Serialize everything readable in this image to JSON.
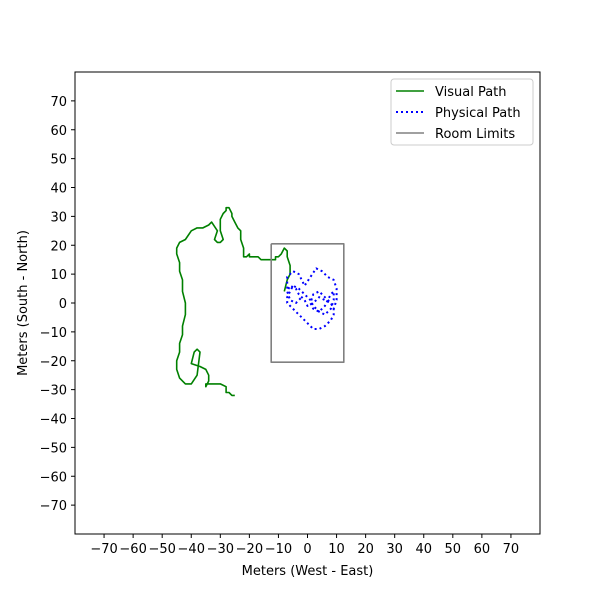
{
  "chart_data": {
    "type": "line",
    "title": "",
    "xlabel": "Meters (West - East)",
    "ylabel": "Meters (South - North)",
    "xlim": [
      -80,
      80
    ],
    "ylim": [
      -80,
      80
    ],
    "xticks": [
      -70,
      -60,
      -50,
      -40,
      -30,
      -20,
      -10,
      0,
      10,
      20,
      30,
      40,
      50,
      60,
      70
    ],
    "yticks": [
      -70,
      -60,
      -50,
      -40,
      -30,
      -20,
      -10,
      0,
      10,
      20,
      30,
      40,
      50,
      60,
      70
    ],
    "xtick_labels": [
      "−70",
      "−60",
      "−50",
      "−40",
      "−30",
      "−20",
      "−10",
      "0",
      "10",
      "20",
      "30",
      "40",
      "50",
      "60",
      "70"
    ],
    "ytick_labels": [
      "−70",
      "−60",
      "−50",
      "−40",
      "−30",
      "−20",
      "−10",
      "0",
      "10",
      "20",
      "30",
      "40",
      "50",
      "60",
      "70"
    ],
    "grid": false,
    "legend_position": "top-right",
    "series": [
      {
        "name": "Visual Path",
        "color": "#008000",
        "style": "solid",
        "x": [
          -8,
          -7,
          -6,
          -6,
          -7,
          -7,
          -8,
          -9,
          -10,
          -11,
          -11,
          -12,
          -14,
          -16,
          -17,
          -18,
          -19,
          -20,
          -20,
          -21,
          -21,
          -22,
          -22,
          -23,
          -23,
          -24,
          -25,
          -26,
          -26,
          -27,
          -28,
          -28,
          -29,
          -30,
          -30,
          -29,
          -30,
          -31,
          -32,
          -31,
          -33,
          -33,
          -34,
          -36,
          -38,
          -40,
          -42,
          -44,
          -45,
          -45,
          -44,
          -44,
          -43,
          -43,
          -42,
          -42,
          -43,
          -43,
          -44,
          -44,
          -45,
          -45,
          -44,
          -42,
          -40,
          -38,
          -37,
          -38,
          -39,
          -40,
          -37,
          -35,
          -34,
          -34,
          -35,
          -35,
          -33,
          -30,
          -28,
          -28,
          -27,
          -26,
          -25
        ],
        "y": [
          4,
          8,
          10,
          13,
          16,
          18,
          19,
          17,
          16,
          16,
          15,
          15,
          15,
          15,
          16,
          16,
          16,
          16,
          17,
          16,
          16,
          16,
          19,
          22,
          25,
          26,
          28,
          30,
          31,
          33,
          33,
          32,
          31,
          29,
          25,
          22,
          21,
          21,
          22,
          25,
          28,
          28,
          27,
          26,
          26,
          25,
          22,
          21,
          19,
          17,
          14,
          11,
          8,
          4,
          0,
          -4,
          -8,
          -11,
          -14,
          -17,
          -20,
          -23,
          -26,
          -28,
          -28,
          -25,
          -17,
          -16,
          -17,
          -21,
          -22,
          -23,
          -25,
          -27,
          -29,
          -28,
          -28,
          -28,
          -29,
          -31,
          -31,
          -32,
          -32
        ]
      },
      {
        "name": "Physical Path",
        "color": "#0000ff",
        "style": "dotted",
        "x": [
          -7,
          -7,
          -5,
          -3,
          -2,
          -1,
          1,
          3,
          5,
          7,
          9,
          10,
          10,
          9,
          8,
          6,
          4,
          2,
          1,
          2,
          4,
          6,
          7,
          8,
          9,
          9,
          8,
          6,
          4,
          2,
          1,
          -1,
          -3,
          -5,
          -6,
          -7,
          -7,
          -6,
          -4,
          -2,
          0,
          2,
          4,
          6,
          8,
          9,
          9,
          8,
          6,
          4,
          2,
          0,
          -1,
          -3,
          -4,
          -6,
          -7,
          -6,
          -4,
          -2
        ],
        "y": [
          5,
          9,
          11,
          10,
          8,
          6,
          9,
          12,
          11,
          9,
          8,
          5,
          1,
          -2,
          0,
          2,
          4,
          3,
          0,
          -2,
          -3,
          -1,
          1,
          3,
          4,
          1,
          -2,
          -4,
          -3,
          -1,
          1,
          3,
          5,
          6,
          4,
          2,
          0,
          -1,
          -3,
          -5,
          -7,
          -9,
          -9,
          -8,
          -6,
          -4,
          -2,
          0,
          1,
          2,
          0,
          -1,
          1,
          3,
          5,
          6,
          4,
          1,
          0,
          2
        ]
      },
      {
        "name": "Room Limits",
        "color": "#808080",
        "style": "solid",
        "x": [
          -12.5,
          12.5,
          12.5,
          -12.5,
          -12.5
        ],
        "y": [
          20.5,
          20.5,
          -20.5,
          -20.5,
          20.5
        ]
      }
    ]
  }
}
